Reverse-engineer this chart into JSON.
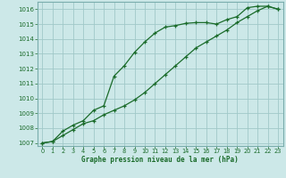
{
  "xlabel": "Graphe pression niveau de la mer (hPa)",
  "bg_color": "#cce8e8",
  "grid_color": "#a0c8c8",
  "line_color": "#1a6b2a",
  "xlim": [
    -0.5,
    23.5
  ],
  "ylim": [
    1006.8,
    1016.5
  ],
  "yticks": [
    1007,
    1008,
    1009,
    1010,
    1011,
    1012,
    1013,
    1014,
    1015,
    1016
  ],
  "xticks": [
    0,
    1,
    2,
    3,
    4,
    5,
    6,
    7,
    8,
    9,
    10,
    11,
    12,
    13,
    14,
    15,
    16,
    17,
    18,
    19,
    20,
    21,
    22,
    23
  ],
  "line1_x": [
    0,
    1,
    2,
    3,
    4,
    5,
    6,
    7,
    8,
    9,
    10,
    11,
    12,
    13,
    14,
    15,
    16,
    17,
    18,
    19,
    20,
    21,
    22,
    23
  ],
  "line1_y": [
    1007.0,
    1007.1,
    1007.8,
    1008.2,
    1008.5,
    1009.2,
    1009.5,
    1011.5,
    1012.2,
    1013.1,
    1013.8,
    1014.4,
    1014.8,
    1014.9,
    1015.05,
    1015.1,
    1015.1,
    1015.0,
    1015.3,
    1015.5,
    1016.1,
    1016.2,
    1016.2,
    1016.0
  ],
  "line2_x": [
    0,
    1,
    2,
    3,
    4,
    5,
    6,
    7,
    8,
    9,
    10,
    11,
    12,
    13,
    14,
    15,
    16,
    17,
    18,
    19,
    20,
    21,
    22,
    23
  ],
  "line2_y": [
    1007.0,
    1007.1,
    1007.5,
    1007.9,
    1008.3,
    1008.5,
    1008.9,
    1009.2,
    1009.5,
    1009.9,
    1010.4,
    1011.0,
    1011.6,
    1012.2,
    1012.8,
    1013.4,
    1013.8,
    1014.2,
    1014.6,
    1015.1,
    1015.5,
    1015.9,
    1016.2,
    1016.0
  ]
}
